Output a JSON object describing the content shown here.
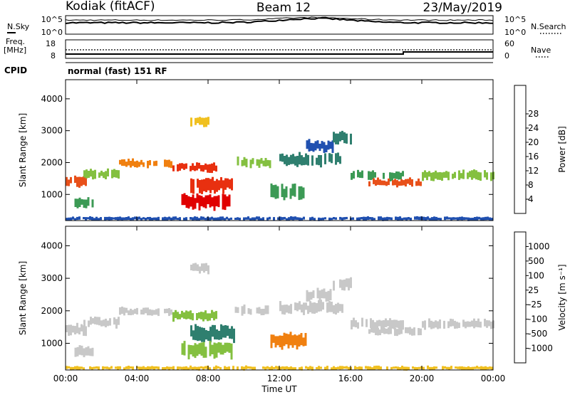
{
  "header": {
    "station": "Kodiak (fitACF)",
    "beam": "Beam 12",
    "date": "23/May/2019"
  },
  "strip": {
    "nsky_label": "N.Sky",
    "nsearch_label": "N.Search",
    "nsky_ticks": [
      "10^5",
      "10^0"
    ],
    "nsearch_ticks": [
      "10^5",
      "10^0"
    ],
    "freq_label": "Freq.",
    "freq_unit": "[MHz]",
    "freq_ticks": [
      "18",
      "8"
    ],
    "nave_label": "Nave",
    "nave_ticks": [
      "60",
      "0"
    ],
    "cpid_label": "CPID",
    "cpid_value": "normal (fast) 151 RF"
  },
  "chart_data": [
    {
      "type": "heatmap",
      "name": "power",
      "ylabel": "Slant Range [km]",
      "xlabel": "",
      "y_ticks": [
        1000,
        2000,
        3000,
        4000
      ],
      "ylim": [
        180,
        4600
      ],
      "x_ticks": [
        "00:00",
        "04:00",
        "08:00",
        "12:00",
        "16:00",
        "20:00",
        "00:00"
      ],
      "xlim_hours": [
        0,
        24
      ],
      "colorbar": {
        "label": "Power [dB]",
        "ticks": [
          "4",
          "8",
          "12",
          "16",
          "20",
          "24",
          "28"
        ],
        "colors": [
          "#1010e0",
          "#2050b0",
          "#2f7f6f",
          "#3c9a55",
          "#84c040",
          "#f0c020",
          "#f08010",
          "#e83010",
          "#e00000"
        ]
      },
      "bands": [
        {
          "from_h": 0.0,
          "to_h": 1.2,
          "km_lo": 1250,
          "km_hi": 1600,
          "color": "#e8501a"
        },
        {
          "from_h": 0.5,
          "to_h": 1.5,
          "km_lo": 600,
          "km_hi": 900,
          "color": "#3c9a55"
        },
        {
          "from_h": 1.0,
          "to_h": 3.0,
          "km_lo": 1500,
          "km_hi": 1800,
          "color": "#84c040"
        },
        {
          "from_h": 3.0,
          "to_h": 6.0,
          "km_lo": 1850,
          "km_hi": 2100,
          "color": "#f08010"
        },
        {
          "from_h": 6.0,
          "to_h": 8.5,
          "km_lo": 1700,
          "km_hi": 2000,
          "color": "#e83010"
        },
        {
          "from_h": 7.0,
          "to_h": 9.5,
          "km_lo": 1050,
          "km_hi": 1550,
          "color": "#e83010"
        },
        {
          "from_h": 6.5,
          "to_h": 9.3,
          "km_lo": 550,
          "km_hi": 1050,
          "color": "#e00000"
        },
        {
          "from_h": 7.0,
          "to_h": 8.0,
          "km_lo": 3150,
          "km_hi": 3450,
          "color": "#f0c020"
        },
        {
          "from_h": 9.5,
          "to_h": 11.5,
          "km_lo": 1850,
          "km_hi": 2150,
          "color": "#84c040"
        },
        {
          "from_h": 11.5,
          "to_h": 13.5,
          "km_lo": 850,
          "km_hi": 1300,
          "color": "#3c9a55"
        },
        {
          "from_h": 12.0,
          "to_h": 15.5,
          "km_lo": 1900,
          "km_hi": 2300,
          "color": "#2f7f6f"
        },
        {
          "from_h": 13.5,
          "to_h": 15.0,
          "km_lo": 2300,
          "km_hi": 2700,
          "color": "#2050b0"
        },
        {
          "from_h": 15.0,
          "to_h": 16.0,
          "km_lo": 2600,
          "km_hi": 3000,
          "color": "#2f7f6f"
        },
        {
          "from_h": 16.0,
          "to_h": 19.0,
          "km_lo": 1450,
          "km_hi": 1750,
          "color": "#3c9a55"
        },
        {
          "from_h": 17.0,
          "to_h": 20.0,
          "km_lo": 1250,
          "km_hi": 1500,
          "color": "#e8501a"
        },
        {
          "from_h": 20.0,
          "to_h": 24.0,
          "km_lo": 1450,
          "km_hi": 1750,
          "color": "#84c040"
        },
        {
          "from_h": 0.0,
          "to_h": 24.0,
          "km_lo": 180,
          "km_hi": 300,
          "color": "#2050b0"
        }
      ]
    },
    {
      "type": "heatmap",
      "name": "velocity",
      "ylabel": "Slant Range [km]",
      "xlabel": "Time UT",
      "y_ticks": [
        1000,
        2000,
        3000,
        4000
      ],
      "ylim": [
        180,
        4600
      ],
      "x_ticks": [
        "00:00",
        "04:00",
        "08:00",
        "12:00",
        "16:00",
        "20:00",
        "00:00"
      ],
      "xlim_hours": [
        0,
        24
      ],
      "colorbar": {
        "label": "Velocity [m s⁻¹]",
        "ticks": [
          "1000",
          "500",
          "100",
          "25",
          "-25",
          "-100",
          "-500",
          "-1000"
        ],
        "colors": [
          "#2040c0",
          "#2f7f6f",
          "#3c9a55",
          "#84c040",
          "#c8c8c8",
          "#f0c020",
          "#f08010",
          "#e83010",
          "#e00000"
        ]
      },
      "bands": [
        {
          "from_h": 0.0,
          "to_h": 1.2,
          "km_lo": 1250,
          "km_hi": 1600,
          "color": "#c8c8c8"
        },
        {
          "from_h": 0.5,
          "to_h": 1.5,
          "km_lo": 600,
          "km_hi": 900,
          "color": "#c8c8c8"
        },
        {
          "from_h": 1.0,
          "to_h": 3.0,
          "km_lo": 1500,
          "km_hi": 1800,
          "color": "#c8c8c8"
        },
        {
          "from_h": 3.0,
          "to_h": 6.0,
          "km_lo": 1850,
          "km_hi": 2100,
          "color": "#c8c8c8"
        },
        {
          "from_h": 6.0,
          "to_h": 8.5,
          "km_lo": 1700,
          "km_hi": 2000,
          "color": "#84c040"
        },
        {
          "from_h": 7.0,
          "to_h": 9.5,
          "km_lo": 1050,
          "km_hi": 1550,
          "color": "#2f7f6f"
        },
        {
          "from_h": 6.5,
          "to_h": 9.3,
          "km_lo": 550,
          "km_hi": 1050,
          "color": "#84c040"
        },
        {
          "from_h": 7.0,
          "to_h": 8.0,
          "km_lo": 3150,
          "km_hi": 3450,
          "color": "#c8c8c8"
        },
        {
          "from_h": 9.5,
          "to_h": 11.5,
          "km_lo": 1850,
          "km_hi": 2150,
          "color": "#c8c8c8"
        },
        {
          "from_h": 11.5,
          "to_h": 13.5,
          "km_lo": 850,
          "km_hi": 1300,
          "color": "#f08010"
        },
        {
          "from_h": 12.0,
          "to_h": 15.5,
          "km_lo": 1900,
          "km_hi": 2300,
          "color": "#c8c8c8"
        },
        {
          "from_h": 13.5,
          "to_h": 15.0,
          "km_lo": 2300,
          "km_hi": 2700,
          "color": "#c8c8c8"
        },
        {
          "from_h": 15.0,
          "to_h": 16.0,
          "km_lo": 2600,
          "km_hi": 3000,
          "color": "#c8c8c8"
        },
        {
          "from_h": 16.0,
          "to_h": 19.0,
          "km_lo": 1450,
          "km_hi": 1750,
          "color": "#c8c8c8"
        },
        {
          "from_h": 17.0,
          "to_h": 20.0,
          "km_lo": 1250,
          "km_hi": 1500,
          "color": "#c8c8c8"
        },
        {
          "from_h": 20.0,
          "to_h": 24.0,
          "km_lo": 1450,
          "km_hi": 1750,
          "color": "#c8c8c8"
        },
        {
          "from_h": 0.0,
          "to_h": 24.0,
          "km_lo": 180,
          "km_hi": 300,
          "color": "#f0c020"
        }
      ]
    }
  ]
}
